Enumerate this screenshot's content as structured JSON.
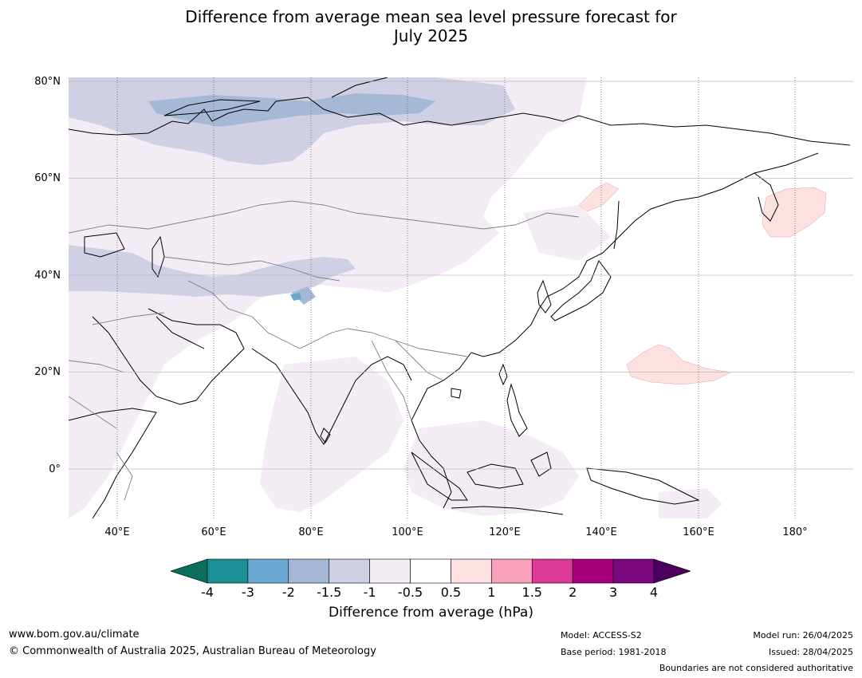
{
  "title_line1": "Difference from average mean sea level pressure forecast for",
  "title_line2": "July 2025",
  "map": {
    "lon_range": [
      30,
      192
    ],
    "lat_range": [
      -10,
      81
    ],
    "lat_labels": [
      "80°N",
      "60°N",
      "40°N",
      "20°N",
      "0°"
    ],
    "lon_labels": [
      "40°E",
      "60°E",
      "80°E",
      "100°E",
      "120°E",
      "140°E",
      "160°E",
      "180°"
    ]
  },
  "colorbar": {
    "title": "Difference from average (hPa)",
    "ticks": [
      "-4",
      "-3",
      "-2",
      "-1.5",
      "-1",
      "-0.5",
      "0.5",
      "1",
      "1.5",
      "2",
      "3",
      "4"
    ],
    "colors": [
      "#1b8f96",
      "#6aa8d2",
      "#a5b8d6",
      "#cfd0e4",
      "#f3ecf5",
      "#ffffff",
      "#fde0e0",
      "#f9a0bb",
      "#dc3896",
      "#a8007d",
      "#7b0880"
    ],
    "under_color": "#0b6e5f",
    "over_color": "#4b0060"
  },
  "footer": {
    "website": "www.bom.gov.au/climate",
    "copyright": "© Commonwealth of Australia 2025, Australian Bureau of Meteorology",
    "model": "Model: ACCESS-S2",
    "base_period": "Base period: 1981-2018",
    "model_run": "Model run: 26/04/2025",
    "issued": "Issued: 28/04/2025",
    "disclaimer": "Boundaries are not considered authoritative"
  }
}
